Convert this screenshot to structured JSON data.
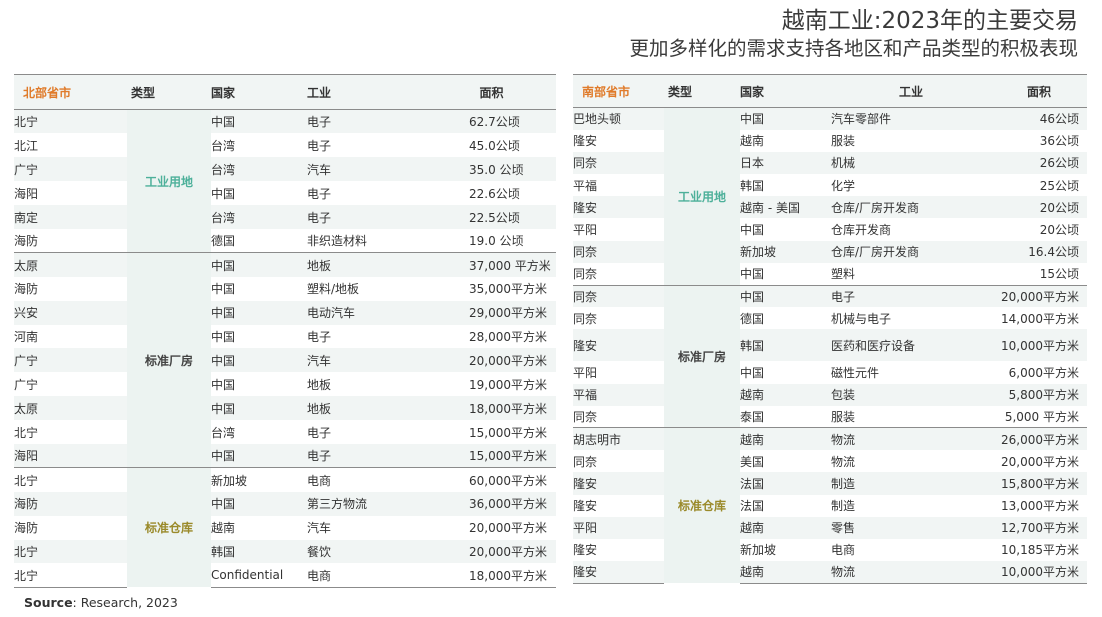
{
  "header": {
    "title": "越南工业:2023年的主要交易",
    "subtitle": "更加多样化的需求支持各地区和产品类型的积极表现"
  },
  "colors": {
    "region_header": "#e07b2a",
    "type_industrial_land": "#4db09a",
    "type_factory": "#444444",
    "type_warehouse": "#9a8a2a",
    "zebra": "#f1f5f4"
  },
  "north": {
    "headers": {
      "region": "北部省市",
      "type": "类型",
      "country": "国家",
      "industry": "工业",
      "area": "面积"
    },
    "groups": [
      {
        "type": "工业用地",
        "rows": [
          {
            "region": "北宁",
            "country": "中国",
            "industry": "电子",
            "area": "62.7公顷"
          },
          {
            "region": "北江",
            "country": "台湾",
            "industry": "电子",
            "area": "45.0公顷"
          },
          {
            "region": "广宁",
            "country": "台湾",
            "industry": "汽车",
            "area": "35.0 公顷"
          },
          {
            "region": "海阳",
            "country": "中国",
            "industry": "电子",
            "area": "22.6公顷"
          },
          {
            "region": "南定",
            "country": "台湾",
            "industry": "电子",
            "area": "22.5公顷"
          },
          {
            "region": "海防",
            "country": "德国",
            "industry": "非织造材料",
            "area": "19.0 公顷"
          }
        ]
      },
      {
        "type": "标准厂房",
        "rows": [
          {
            "region": "太原",
            "country": "中国",
            "industry": "地板",
            "area": "37,000 平方米"
          },
          {
            "region": "海防",
            "country": "中国",
            "industry": "塑料/地板",
            "area": "35,000平方米"
          },
          {
            "region": "兴安",
            "country": "中国",
            "industry": "电动汽车",
            "area": "29,000平方米"
          },
          {
            "region": "河南",
            "country": "中国",
            "industry": "电子",
            "area": "28,000平方米"
          },
          {
            "region": "广宁",
            "country": "中国",
            "industry": "汽车",
            "area": "20,000平方米"
          },
          {
            "region": "广宁",
            "country": "中国",
            "industry": "地板",
            "area": "19,000平方米"
          },
          {
            "region": "太原",
            "country": "中国",
            "industry": "地板",
            "area": "18,000平方米"
          },
          {
            "region": "北宁",
            "country": "台湾",
            "industry": "电子",
            "area": "15,000平方米"
          },
          {
            "region": "海阳",
            "country": "中国",
            "industry": "电子",
            "area": "15,000平方米"
          }
        ]
      },
      {
        "type": "标准仓库",
        "rows": [
          {
            "region": "北宁",
            "country": "新加坡",
            "industry": "电商",
            "area": "60,000平方米"
          },
          {
            "region": "海防",
            "country": "中国",
            "industry": "第三方物流",
            "area": "36,000平方米"
          },
          {
            "region": "海防",
            "country": "越南",
            "industry": "汽车",
            "area": "20,000平方米"
          },
          {
            "region": "北宁",
            "country": "韩国",
            "industry": "餐饮",
            "area": "20,000平方米"
          },
          {
            "region": "北宁",
            "country": "Confidential",
            "industry": "电商",
            "area": "18,000平方米"
          }
        ]
      }
    ]
  },
  "south": {
    "headers": {
      "region": "南部省市",
      "type": "类型",
      "country": "国家",
      "industry": "工业",
      "area": "面积"
    },
    "groups": [
      {
        "type": "工业用地",
        "rows": [
          {
            "region": "巴地头顿",
            "country": "中国",
            "industry": "汽车零部件",
            "area": "46公顷"
          },
          {
            "region": "隆安",
            "country": "越南",
            "industry": "服装",
            "area": "36公顷"
          },
          {
            "region": "同奈",
            "country": "日本",
            "industry": "机械",
            "area": "26公顷"
          },
          {
            "region": "平福",
            "country": "韩国",
            "industry": "化学",
            "area": "25公顷"
          },
          {
            "region": "隆安",
            "country": "越南 - 美国",
            "industry": "仓库/厂房开发商",
            "area": "20公顷"
          },
          {
            "region": "平阳",
            "country": "中国",
            "industry": "仓库开发商",
            "area": "20公顷"
          },
          {
            "region": "同奈",
            "country": "新加坡",
            "industry": "仓库/厂房开发商",
            "area": "16.4公顷"
          },
          {
            "region": "同奈",
            "country": "中国",
            "industry": "塑料",
            "area": "15公顷"
          }
        ]
      },
      {
        "type": "标准厂房",
        "rows": [
          {
            "region": "同奈",
            "country": "中国",
            "industry": "电子",
            "area": "20,000平方米"
          },
          {
            "region": "同奈",
            "country": "德国",
            "industry": "机械与电子",
            "area": "14,000平方米"
          },
          {
            "region": "隆安",
            "country": "韩国",
            "industry": "医药和医疗设备",
            "area": "10,000平方米",
            "tall": true
          },
          {
            "region": "平阳",
            "country": "中国",
            "industry": "磁性元件",
            "area": "6,000平方米"
          },
          {
            "region": "平福",
            "country": "越南",
            "industry": "包装",
            "area": "5,800平方米"
          },
          {
            "region": "同奈",
            "country": "泰国",
            "industry": "服装",
            "area": "5,000 平方米"
          }
        ]
      },
      {
        "type": "标准仓库",
        "rows": [
          {
            "region": "胡志明市",
            "country": "越南",
            "industry": "物流",
            "area": "26,000平方米"
          },
          {
            "region": "同奈",
            "country": "美国",
            "industry": "物流",
            "area": "20,000平方米"
          },
          {
            "region": "隆安",
            "country": "法国",
            "industry": "制造",
            "area": "15,800平方米"
          },
          {
            "region": "隆安",
            "country": "法国",
            "industry": "制造",
            "area": "13,000平方米"
          },
          {
            "region": "平阳",
            "country": "越南",
            "industry": "零售",
            "area": "12,700平方米"
          },
          {
            "region": "隆安",
            "country": "新加坡",
            "industry": "电商",
            "area": "10,185平方米"
          },
          {
            "region": "隆安",
            "country": "越南",
            "industry": "物流",
            "area": "10,000平方米"
          }
        ]
      }
    ]
  },
  "source": {
    "label": "Source",
    "text": ": Research, 2023"
  }
}
